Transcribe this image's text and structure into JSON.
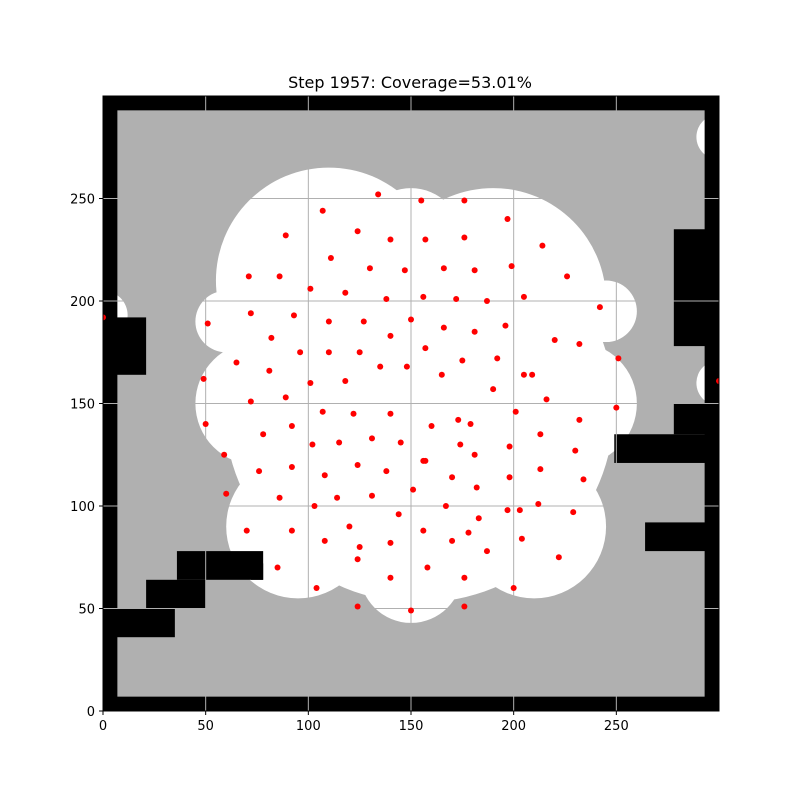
{
  "chart_data": {
    "type": "scatter",
    "title": "Step 1957: Coverage=53.01%",
    "xlabel": "",
    "ylabel": "",
    "xlim": [
      0,
      300
    ],
    "ylim": [
      0,
      300
    ],
    "xticks": [
      0,
      50,
      100,
      150,
      200,
      250
    ],
    "yticks": [
      0,
      50,
      100,
      150,
      200,
      250
    ],
    "grid": true,
    "colors": {
      "unexplored": "#b0b0b0",
      "covered": "#ffffff",
      "obstacle": "#000000",
      "agent": "#ff0000",
      "grid": "#b0b0b0"
    },
    "obstacles": [
      {
        "x0": 0,
        "x1": 7,
        "y0": 0,
        "y1": 300
      },
      {
        "x0": 0,
        "x1": 300,
        "y0": 293,
        "y1": 300
      },
      {
        "x0": 293,
        "x1": 300,
        "y0": 0,
        "y1": 300
      },
      {
        "x0": 0,
        "x1": 300,
        "y0": 0,
        "y1": 7
      },
      {
        "x0": 0,
        "x1": 21,
        "y0": 164,
        "y1": 192
      },
      {
        "x0": 0,
        "x1": 35,
        "y0": 36,
        "y1": 50
      },
      {
        "x0": 21,
        "x1": 50,
        "y0": 50,
        "y1": 64
      },
      {
        "x0": 36,
        "x1": 50,
        "y0": 64,
        "y1": 78
      },
      {
        "x0": 50,
        "x1": 78,
        "y0": 64,
        "y1": 78
      },
      {
        "x0": 72,
        "x1": 78,
        "y0": 64,
        "y1": 72
      },
      {
        "x0": 278,
        "x1": 300,
        "y0": 178,
        "y1": 235
      },
      {
        "x0": 249,
        "x1": 300,
        "y0": 121,
        "y1": 135
      },
      {
        "x0": 278,
        "x1": 300,
        "y0": 135,
        "y1": 150
      },
      {
        "x0": 264,
        "x1": 300,
        "y0": 78,
        "y1": 92
      }
    ],
    "covered_regions": [
      {
        "x": 154,
        "y": 148,
        "r": 95
      },
      {
        "x": 190,
        "y": 200,
        "r": 55
      },
      {
        "x": 110,
        "y": 210,
        "r": 55
      },
      {
        "x": 150,
        "y": 230,
        "r": 25
      },
      {
        "x": 75,
        "y": 150,
        "r": 30
      },
      {
        "x": 230,
        "y": 150,
        "r": 30
      },
      {
        "x": 150,
        "y": 68,
        "r": 25
      },
      {
        "x": 210,
        "y": 90,
        "r": 35
      },
      {
        "x": 95,
        "y": 90,
        "r": 35
      },
      {
        "x": 60,
        "y": 190,
        "r": 15
      },
      {
        "x": 245,
        "y": 195,
        "r": 15
      },
      {
        "x": 300,
        "y": 280,
        "r": 11
      },
      {
        "x": 300,
        "y": 160,
        "r": 11
      },
      {
        "x": 0,
        "y": 193,
        "r": 12
      },
      {
        "x": 0,
        "y": 0,
        "r": 8
      }
    ],
    "series": [
      {
        "type": "scatter",
        "x": [
          134,
          155,
          176,
          107,
          197,
          124,
          89,
          140,
          157,
          176,
          214,
          111,
          130,
          147,
          166,
          181,
          199,
          71,
          86,
          226,
          101,
          118,
          138,
          156,
          172,
          187,
          205,
          72,
          51,
          93,
          110,
          127,
          150,
          166,
          181,
          196,
          220,
          242,
          82,
          96,
          110,
          125,
          140,
          157,
          175,
          192,
          209,
          232,
          251,
          65,
          81,
          101,
          118,
          135,
          148,
          165,
          190,
          205,
          49,
          72,
          89,
          107,
          122,
          140,
          160,
          173,
          179,
          201,
          216,
          232,
          250,
          50,
          78,
          92,
          102,
          115,
          131,
          145,
          156,
          174,
          181,
          198,
          213,
          230,
          59,
          76,
          92,
          108,
          124,
          138,
          157,
          170,
          182,
          198,
          213,
          234,
          60,
          86,
          114,
          131,
          151,
          167,
          183,
          203,
          103,
          120,
          144,
          156,
          178,
          197,
          212,
          229,
          70,
          92,
          108,
          125,
          140,
          170,
          187,
          204,
          222,
          85,
          124,
          104,
          140,
          158,
          176,
          200,
          124,
          150,
          176,
          0,
          300
        ],
        "y": [
          252,
          249,
          249,
          244,
          240,
          234,
          232,
          230,
          230,
          231,
          227,
          221,
          216,
          215,
          216,
          215,
          217,
          212,
          212,
          212,
          206,
          204,
          201,
          202,
          201,
          200,
          202,
          194,
          189,
          193,
          190,
          190,
          191,
          187,
          185,
          188,
          181,
          197,
          182,
          175,
          175,
          175,
          183,
          177,
          171,
          172,
          164,
          179,
          172,
          170,
          166,
          160,
          161,
          168,
          168,
          164,
          157,
          164,
          162,
          151,
          153,
          146,
          145,
          145,
          139,
          142,
          140,
          146,
          152,
          142,
          148,
          140,
          135,
          139,
          130,
          131,
          133,
          131,
          122,
          130,
          125,
          129,
          135,
          127,
          125,
          117,
          119,
          115,
          120,
          117,
          122,
          114,
          109,
          114,
          118,
          113,
          106,
          104,
          104,
          105,
          108,
          100,
          94,
          98,
          100,
          90,
          96,
          88,
          87,
          98,
          101,
          97,
          88,
          88,
          83,
          80,
          82,
          83,
          78,
          84,
          75,
          70,
          74,
          60,
          65,
          70,
          65,
          60,
          51,
          49,
          51,
          192,
          161
        ]
      }
    ]
  }
}
